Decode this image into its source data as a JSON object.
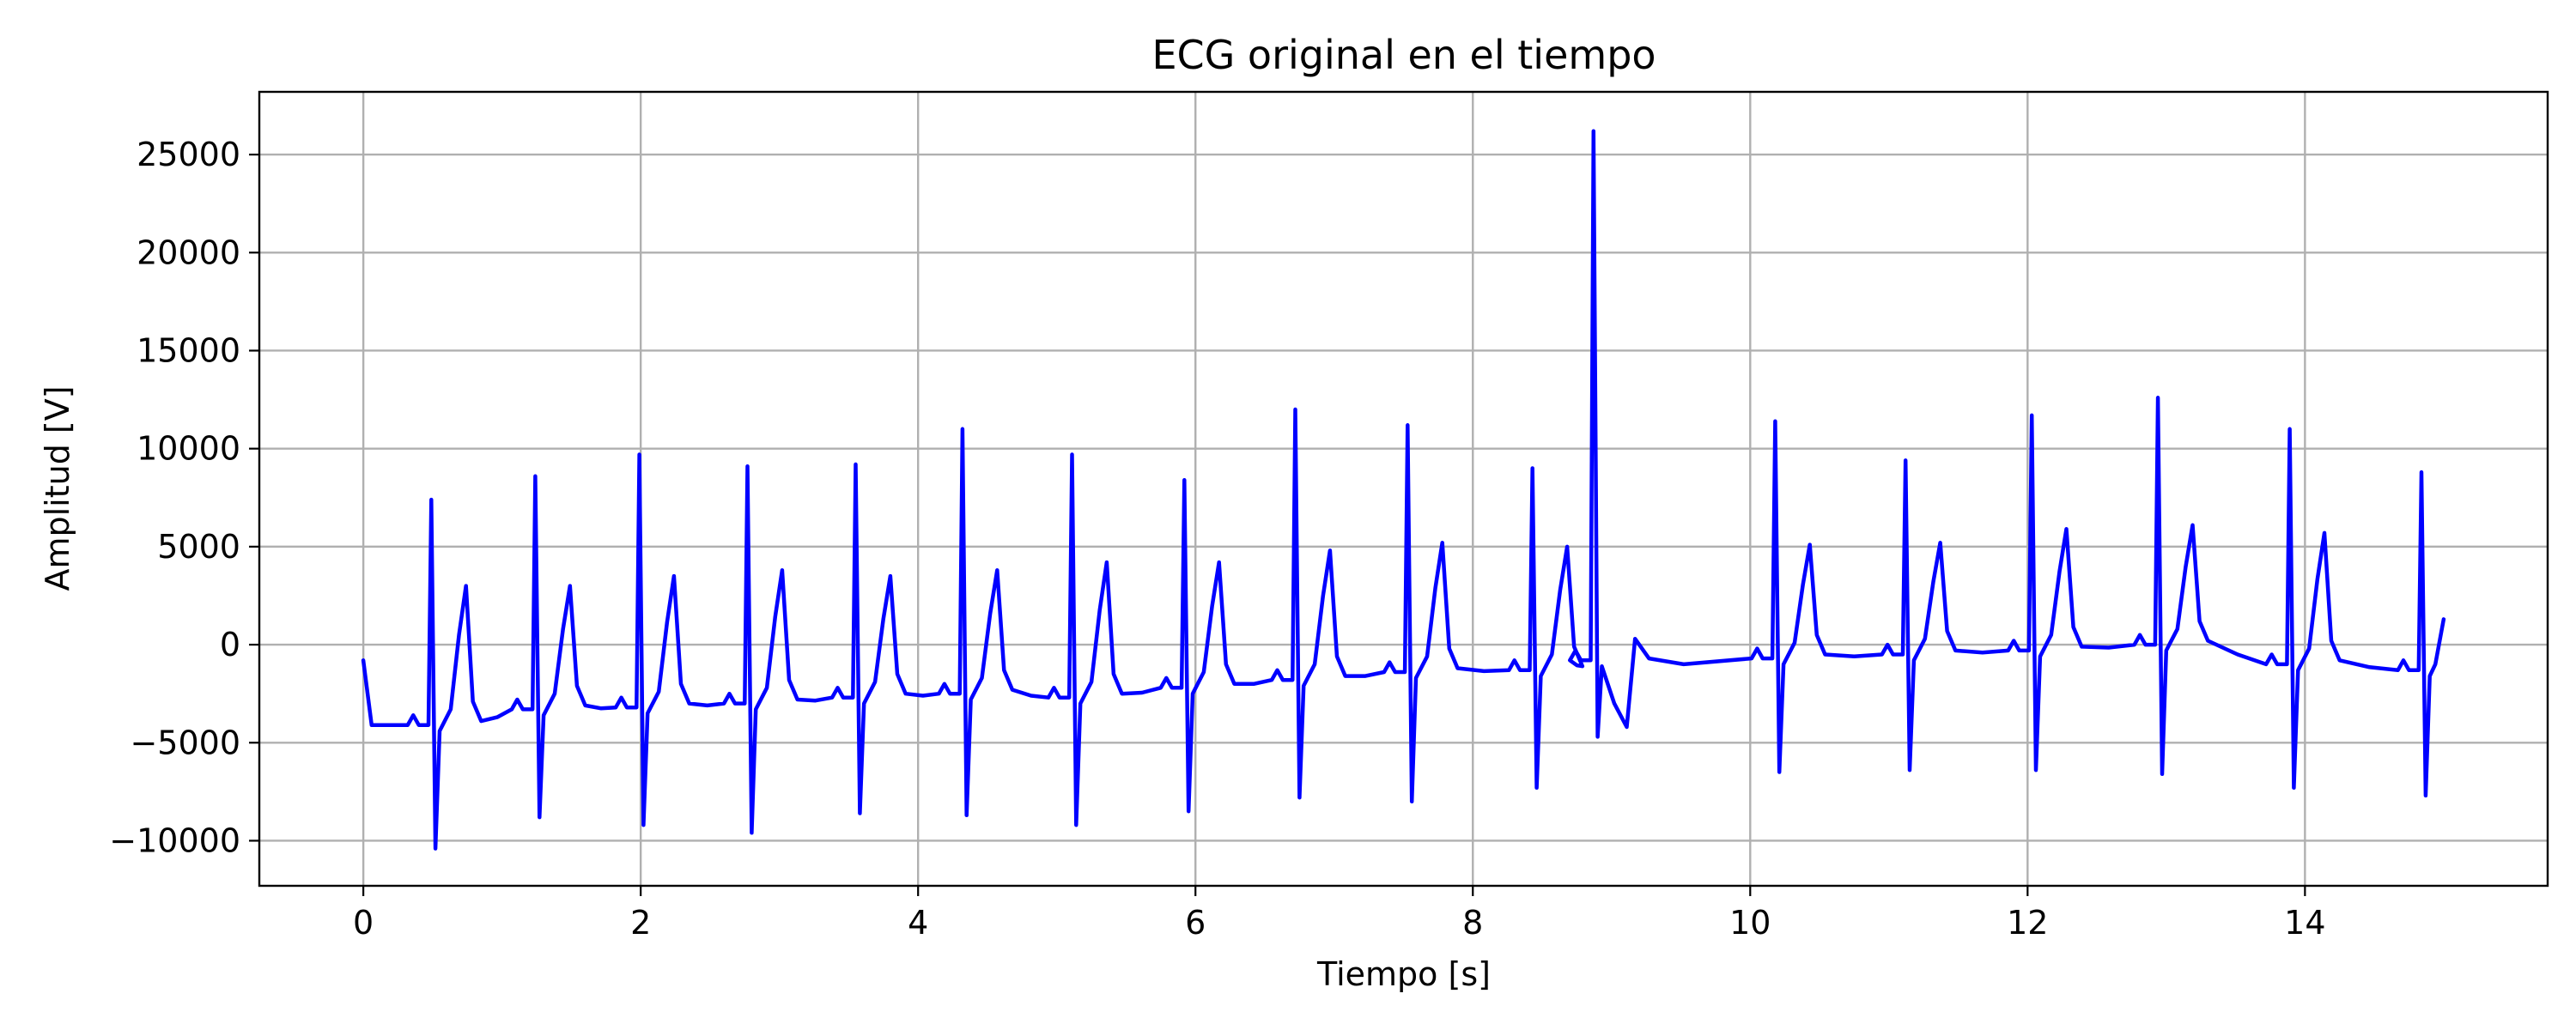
{
  "chart_data": {
    "type": "line",
    "title": "ECG original en el tiempo",
    "xlabel": "Tiempo [s]",
    "ylabel": "Amplitud [V]",
    "xlim": [
      -0.75,
      15.75
    ],
    "ylim": [
      -12300,
      28200
    ],
    "xticks": [
      0,
      2,
      4,
      6,
      8,
      10,
      12,
      14
    ],
    "yticks": [
      -10000,
      -5000,
      0,
      5000,
      10000,
      15000,
      20000,
      25000
    ],
    "xtick_labels": [
      "0",
      "2",
      "4",
      "6",
      "8",
      "10",
      "12",
      "14"
    ],
    "ytick_labels": [
      "−10000",
      "−5000",
      "0",
      "5000",
      "10000",
      "15000",
      "20000",
      "25000"
    ],
    "grid": true,
    "line_color": "#0000ff",
    "series": [
      {
        "start": [
          0.0,
          -800
        ],
        "end": [
          15.0,
          1300
        ],
        "beats": [
          {
            "t": 0.49,
            "base": -4100,
            "r": 7400,
            "s": -10400,
            "t_wave": 3000
          },
          {
            "t": 1.24,
            "base": -3300,
            "r": 8600,
            "s": -8800,
            "t_wave": 3000
          },
          {
            "t": 1.99,
            "base": -3200,
            "r": 9700,
            "s": -9200,
            "t_wave": 3500
          },
          {
            "t": 2.77,
            "base": -3000,
            "r": 9100,
            "s": -9600,
            "t_wave": 3800
          },
          {
            "t": 3.55,
            "base": -2700,
            "r": 9200,
            "s": -8600,
            "t_wave": 3500
          },
          {
            "t": 4.32,
            "base": -2500,
            "r": 11000,
            "s": -8700,
            "t_wave": 3800
          },
          {
            "t": 5.11,
            "base": -2700,
            "r": 9700,
            "s": -9200,
            "t_wave": 4200
          },
          {
            "t": 5.92,
            "base": -2200,
            "r": 8400,
            "s": -8500,
            "t_wave": 4200
          },
          {
            "t": 6.72,
            "base": -1800,
            "r": 12000,
            "s": -7800,
            "t_wave": 4800
          },
          {
            "t": 7.53,
            "base": -1400,
            "r": 11200,
            "s": -8000,
            "t_wave": 5200
          },
          {
            "t": 8.43,
            "base": -1300,
            "r": 9000,
            "s": -7300,
            "t_wave": 5000
          },
          {
            "t": 8.87,
            "base": -800,
            "r": 26200,
            "s": -4700,
            "t_wave": 300
          },
          {
            "t": 10.18,
            "base": -700,
            "r": 11400,
            "s": -6500,
            "t_wave": 5100
          },
          {
            "t": 11.12,
            "base": -500,
            "r": 9400,
            "s": -6400,
            "t_wave": 5200
          },
          {
            "t": 12.03,
            "base": -300,
            "r": 11700,
            "s": -6400,
            "t_wave": 5900
          },
          {
            "t": 12.94,
            "base": 0,
            "r": 12600,
            "s": -6600,
            "t_wave": 6100
          },
          {
            "t": 13.89,
            "base": -1000,
            "r": 11000,
            "s": -7300,
            "t_wave": 5700
          },
          {
            "t": 14.84,
            "base": -1300,
            "r": 8800,
            "s": -7700,
            "t_wave": 1300
          }
        ]
      }
    ]
  }
}
